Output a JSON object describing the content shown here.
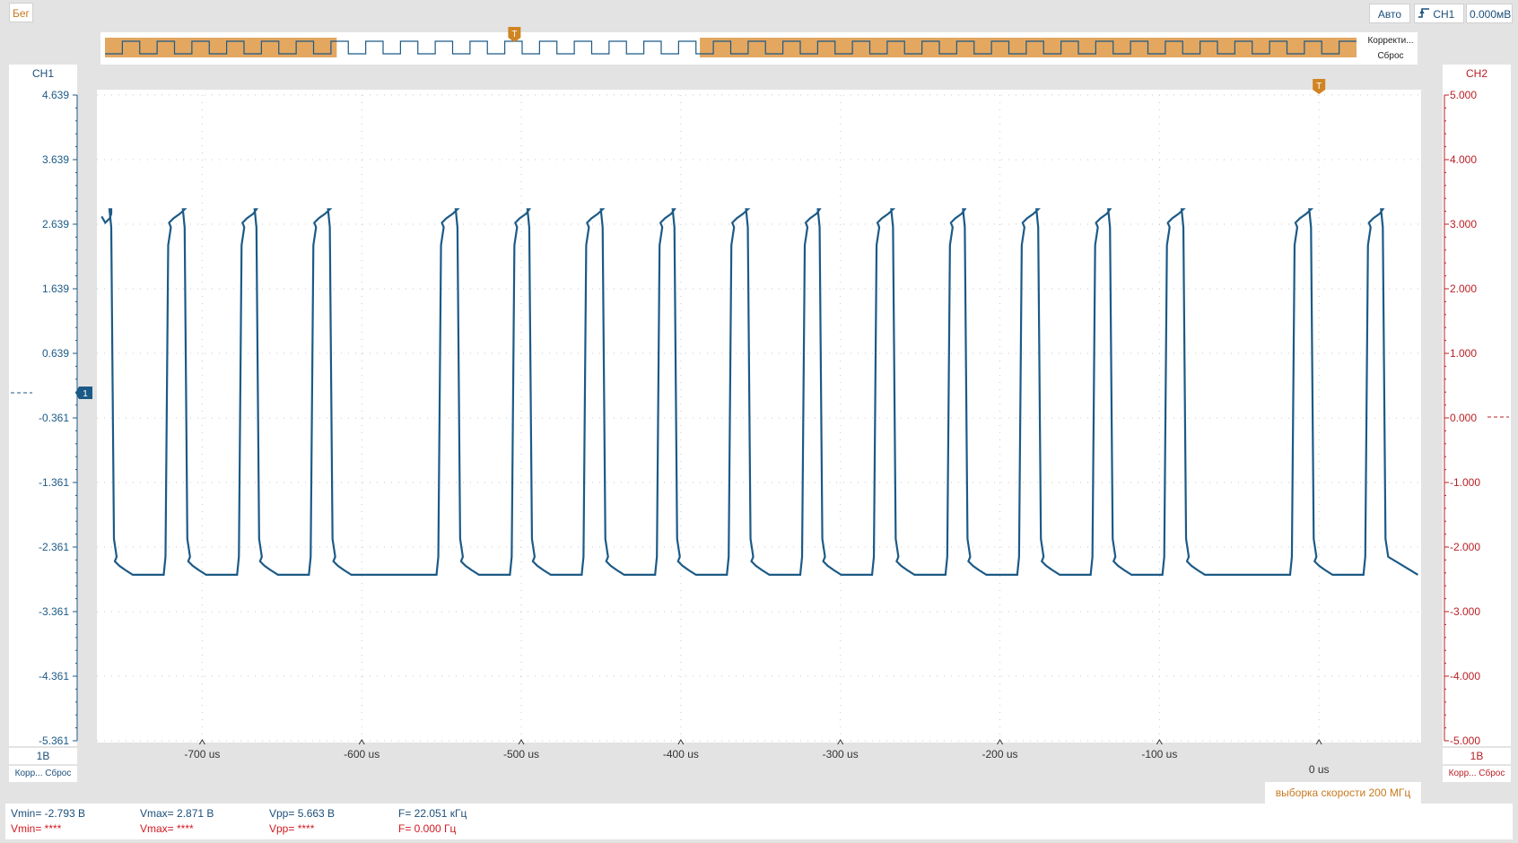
{
  "toolbar": {
    "run_label": "Бег",
    "auto_label": "Авто",
    "trigger_source": "CH1",
    "trigger_level": "0.000мВ"
  },
  "overview": {
    "adjust_label": "Корректи...",
    "reset_label": "Сброс"
  },
  "ch1": {
    "label": "CH1",
    "volts_per_div": "1В",
    "adjust_reset": "Корр... Сброс",
    "color": "#1c5a86"
  },
  "ch2": {
    "label": "CH2",
    "volts_per_div": "1В",
    "adjust_reset": "Корр... Сброс",
    "color": "#b81f24"
  },
  "trigger_marker": "T",
  "ch1_ground_marker": "1",
  "sample_rate": "выборка скорости 200 МГц",
  "measurements": {
    "ch1": {
      "vmin": "Vmin= -2.793 В",
      "vmax": "Vmax= 2.871 В",
      "vpp": "Vpp= 5.663 В",
      "freq": "F= 22.051 кГц"
    },
    "ch2": {
      "vmin": "Vmin= ****",
      "vmax": "Vmax= ****",
      "vpp": "Vpp= ****",
      "freq": "F= 0.000 Гц"
    }
  },
  "chart_data": {
    "type": "line",
    "title": "",
    "xlabel": "",
    "ylabel": "",
    "x_unit": "us",
    "xlim": [
      -766,
      64
    ],
    "x_ticks": [
      -700,
      -600,
      -500,
      -400,
      -300,
      -200,
      -100,
      0
    ],
    "x_tick_labels": [
      "-700 us",
      "-600 us",
      "-500 us",
      "-400 us",
      "-300 us",
      "-200 us",
      "-100 us",
      "0 us"
    ],
    "y_left": {
      "ylim": [
        -5.361,
        4.639
      ],
      "ticks": [
        "4.639",
        "3.639",
        "2.639",
        "1.639",
        "0.639",
        "-0.361",
        "-1.361",
        "-2.361",
        "-3.361",
        "-4.361",
        "-5.361"
      ]
    },
    "y_right": {
      "ylim": [
        -5.0,
        5.0
      ],
      "ticks": [
        "5.000",
        "4.000",
        "3.000",
        "2.000",
        "1.000",
        "0.000",
        "-1.000",
        "-2.000",
        "-3.000",
        "-4.000",
        "-5.000"
      ]
    },
    "grid": true,
    "series": [
      {
        "name": "CH1",
        "high_v": 2.87,
        "low_v": -2.79,
        "start_level": "high",
        "transitions_us": [
          -757,
          -723,
          -711,
          -677,
          -666,
          -632,
          -620,
          -552,
          -540,
          -506,
          -495,
          -461,
          -449,
          -415,
          -404,
          -370,
          -358,
          -324,
          -313,
          -279,
          -267,
          -233,
          -222,
          -188,
          -176,
          -142,
          -131,
          -97,
          -85,
          -17,
          -5,
          29,
          40
        ]
      }
    ],
    "trigger_position_us": 0,
    "trigger_level_v": 0.0
  }
}
